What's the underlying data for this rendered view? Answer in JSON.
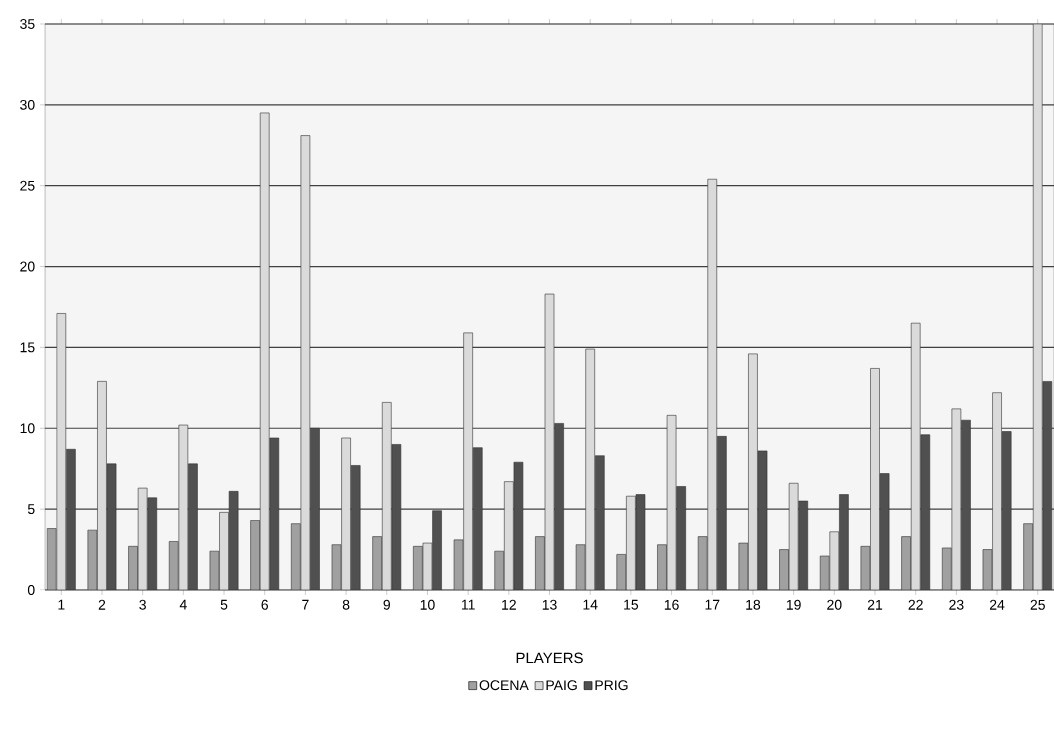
{
  "chart_data": {
    "type": "bar",
    "xlabel": "PLAYERS",
    "categories": [
      "1",
      "2",
      "3",
      "4",
      "5",
      "6",
      "7",
      "8",
      "9",
      "10",
      "11",
      "12",
      "13",
      "14",
      "15",
      "16",
      "17",
      "18",
      "19",
      "20",
      "21",
      "22",
      "23",
      "24",
      "25"
    ],
    "series": [
      {
        "name": "OCENA",
        "color": "#a0a0a0",
        "values": [
          3.8,
          3.7,
          2.7,
          3.0,
          2.4,
          4.3,
          4.1,
          2.8,
          3.3,
          2.7,
          3.1,
          2.4,
          3.3,
          2.8,
          2.2,
          2.8,
          3.3,
          2.9,
          2.5,
          2.1,
          2.7,
          3.3,
          2.6,
          2.5,
          4.1
        ]
      },
      {
        "name": "PAIG",
        "color": "#dadada",
        "values": [
          17.1,
          12.9,
          6.3,
          10.2,
          4.8,
          29.5,
          28.1,
          9.4,
          11.6,
          2.9,
          15.9,
          6.7,
          18.3,
          14.9,
          5.8,
          10.8,
          25.4,
          14.6,
          6.6,
          3.6,
          13.7,
          16.5,
          11.2,
          12.2,
          35
        ]
      },
      {
        "name": "PRIG",
        "color": "#505050",
        "values": [
          8.7,
          7.8,
          5.7,
          7.8,
          6.1,
          9.4,
          10.0,
          7.7,
          9.0,
          4.9,
          8.8,
          7.9,
          10.3,
          8.3,
          5.9,
          6.4,
          9.5,
          8.6,
          5.5,
          5.9,
          7.2,
          9.6,
          10.5,
          9.8,
          12.9
        ]
      }
    ],
    "ylim": [
      0,
      35
    ],
    "yticks": [
      0,
      5,
      10,
      15,
      20,
      25,
      30,
      35
    ],
    "grid": "y",
    "legend": "bottom"
  }
}
